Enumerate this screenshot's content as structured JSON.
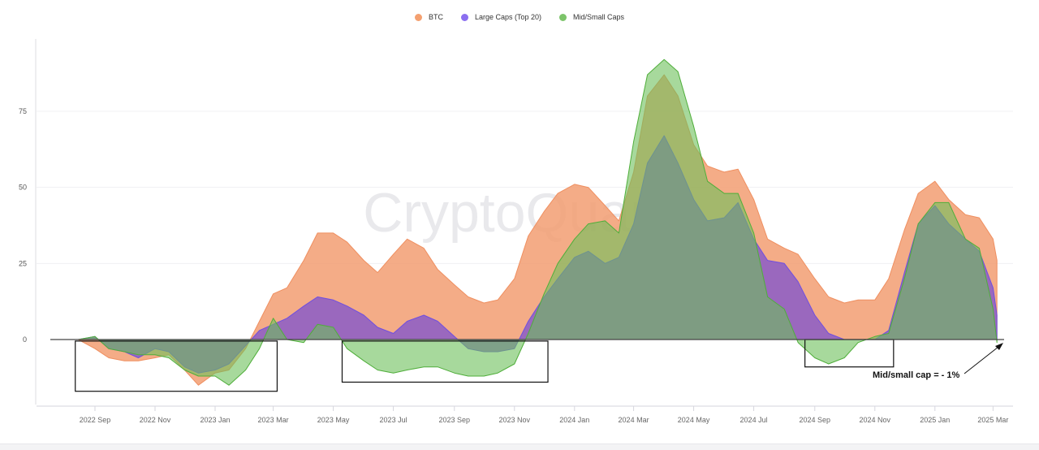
{
  "chart_data": {
    "type": "area",
    "title": "",
    "xlabel": "",
    "ylabel": "",
    "watermark": "CryptoQuant",
    "ylim": [
      -22,
      98
    ],
    "yticks": [
      0,
      25,
      50,
      75
    ],
    "grid": true,
    "legend_position": "top-center",
    "xtick_labels": [
      "2022 Sep",
      "2022 Nov",
      "2023 Jan",
      "2023 Mar",
      "2023 May",
      "2023 Jul",
      "2023 Sep",
      "2023 Nov",
      "2024 Jan",
      "2024 Mar",
      "2024 May",
      "2024 Jul",
      "2024 Sep",
      "2024 Nov",
      "2025 Jan",
      "2025 Mar"
    ],
    "xtick_dates": [
      "2022-09-01",
      "2022-11-01",
      "2023-01-01",
      "2023-03-01",
      "2023-05-01",
      "2023-07-01",
      "2023-09-01",
      "2023-11-01",
      "2024-01-01",
      "2024-03-01",
      "2024-05-01",
      "2024-07-01",
      "2024-09-01",
      "2024-11-01",
      "2025-01-01",
      "2025-03-01"
    ],
    "x": [
      "2022-08-15",
      "2022-09-01",
      "2022-09-15",
      "2022-10-01",
      "2022-10-15",
      "2022-11-01",
      "2022-11-15",
      "2022-12-01",
      "2022-12-15",
      "2023-01-01",
      "2023-01-15",
      "2023-02-01",
      "2023-02-15",
      "2023-03-01",
      "2023-03-15",
      "2023-04-01",
      "2023-04-15",
      "2023-05-01",
      "2023-05-15",
      "2023-06-01",
      "2023-06-15",
      "2023-07-01",
      "2023-07-15",
      "2023-08-01",
      "2023-08-15",
      "2023-09-01",
      "2023-09-15",
      "2023-10-01",
      "2023-10-15",
      "2023-11-01",
      "2023-11-15",
      "2023-12-01",
      "2023-12-15",
      "2024-01-01",
      "2024-01-15",
      "2024-02-01",
      "2024-02-15",
      "2024-03-01",
      "2024-03-15",
      "2024-04-01",
      "2024-04-15",
      "2024-05-01",
      "2024-05-15",
      "2024-06-01",
      "2024-06-15",
      "2024-07-01",
      "2024-07-15",
      "2024-08-01",
      "2024-08-15",
      "2024-09-01",
      "2024-09-15",
      "2024-10-01",
      "2024-10-15",
      "2024-11-01",
      "2024-11-15",
      "2024-12-01",
      "2024-12-15",
      "2025-01-01",
      "2025-01-15",
      "2025-02-01",
      "2025-02-15",
      "2025-03-01",
      "2025-03-05"
    ],
    "series": [
      {
        "name": "BTC",
        "color": "#f29d72",
        "values": [
          0,
          -3,
          -6,
          -7,
          -7,
          -6,
          -5,
          -10,
          -15,
          -11,
          -10,
          -3,
          6,
          15,
          17,
          26,
          35,
          35,
          32,
          26,
          22,
          28,
          33,
          30,
          23,
          18,
          14,
          12,
          13,
          20,
          34,
          42,
          48,
          51,
          50,
          44,
          39,
          55,
          80,
          87,
          80,
          64,
          57,
          55,
          56,
          46,
          33,
          30,
          28,
          20,
          14,
          12,
          13,
          13,
          20,
          36,
          48,
          52,
          46,
          41,
          40,
          33,
          26
        ]
      },
      {
        "name": "Large Caps (Top 20)",
        "color": "#8a5cc8",
        "values": [
          0,
          1,
          -3,
          -4,
          -6,
          -3,
          -4,
          -9,
          -11,
          -10,
          -8,
          -2,
          3,
          5,
          7,
          11,
          14,
          13,
          11,
          8,
          4,
          2,
          6,
          8,
          6,
          1,
          -3,
          -4,
          -4,
          -3,
          6,
          14,
          20,
          27,
          29,
          25,
          27,
          38,
          58,
          67,
          58,
          46,
          39,
          40,
          45,
          33,
          26,
          25,
          19,
          8,
          2,
          0,
          0,
          0,
          3,
          22,
          38,
          44,
          38,
          33,
          29,
          17,
          8
        ]
      },
      {
        "name": "Mid/Small Caps",
        "color": "#6cbf5a",
        "values": [
          0,
          1,
          -3,
          -4,
          -5,
          -5,
          -6,
          -10,
          -12,
          -12,
          -15,
          -10,
          -3,
          7,
          0,
          -1,
          5,
          4,
          -3,
          -7,
          -10,
          -11,
          -10,
          -9,
          -9,
          -11,
          -12,
          -12,
          -11,
          -8,
          2,
          15,
          25,
          33,
          38,
          39,
          35,
          65,
          87,
          92,
          88,
          70,
          52,
          48,
          48,
          35,
          14,
          10,
          -1,
          -6,
          -8,
          -6,
          -1,
          1,
          2,
          20,
          38,
          45,
          45,
          33,
          30,
          10,
          -1
        ]
      }
    ],
    "annotations": {
      "text": "Mid/small cap = - 1%",
      "highlight_boxes": [
        {
          "from": "2022-08-12",
          "to": "2023-03-05",
          "ymin": -17,
          "ymax": -0.5
        },
        {
          "from": "2023-05-10",
          "to": "2023-12-05",
          "ymin": -14,
          "ymax": -0.5
        },
        {
          "from": "2024-08-22",
          "to": "2024-11-20",
          "ymin": -9,
          "ymax": 0
        }
      ]
    }
  }
}
